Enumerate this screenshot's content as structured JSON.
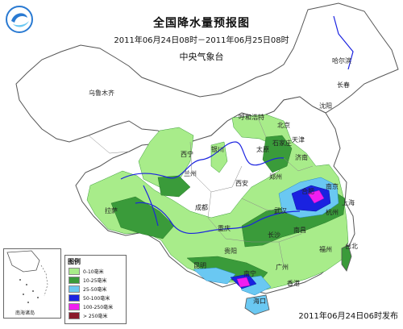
{
  "map": {
    "title": "全国降水量预报图",
    "period": "2011年06月24日08时－2011年06月25日08时",
    "issuer": "中央气象台",
    "footer": "2011年06月24日06时发布",
    "inset_label": "南海诸岛"
  },
  "legend": {
    "title": "图例",
    "items": [
      {
        "label": "0-10毫米",
        "color": "#a8ec8a"
      },
      {
        "label": "10-25毫米",
        "color": "#3a9b3a"
      },
      {
        "label": "25-50毫米",
        "color": "#6ac8f2"
      },
      {
        "label": "50-100毫米",
        "color": "#1a22e0"
      },
      {
        "label": "100-250毫米",
        "color": "#f01ef0"
      },
      {
        "label": "> 250毫米",
        "color": "#8a1a2a"
      }
    ]
  },
  "cities": [
    {
      "name": "哈尔滨"
    },
    {
      "name": "长春"
    },
    {
      "name": "沈阳"
    },
    {
      "name": "乌鲁木齐"
    },
    {
      "name": "呼和浩特"
    },
    {
      "name": "北京"
    },
    {
      "name": "天津"
    },
    {
      "name": "石家庄"
    },
    {
      "name": "太原"
    },
    {
      "name": "银川"
    },
    {
      "name": "西宁"
    },
    {
      "name": "兰州"
    },
    {
      "name": "济南"
    },
    {
      "name": "郑州"
    },
    {
      "name": "西安"
    },
    {
      "name": "合肥"
    },
    {
      "name": "南京"
    },
    {
      "name": "上海"
    },
    {
      "name": "武汉"
    },
    {
      "name": "杭州"
    },
    {
      "name": "成都"
    },
    {
      "name": "拉萨"
    },
    {
      "name": "重庆"
    },
    {
      "name": "长沙"
    },
    {
      "name": "南昌"
    },
    {
      "name": "贵阳"
    },
    {
      "name": "福州"
    },
    {
      "name": "昆明"
    },
    {
      "name": "南宁"
    },
    {
      "name": "广州"
    },
    {
      "name": "香港"
    },
    {
      "name": "台北"
    },
    {
      "name": "海口"
    }
  ]
}
